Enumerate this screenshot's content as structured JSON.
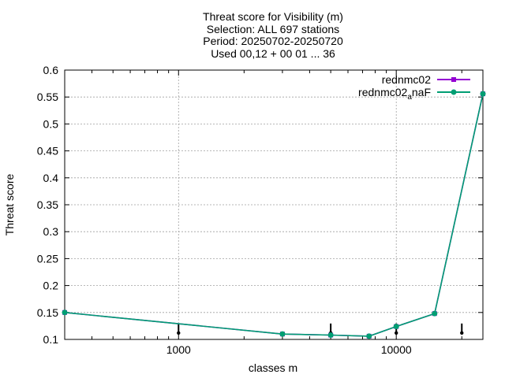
{
  "chart_data": {
    "type": "line",
    "title_lines": [
      "Threat score  for Visibility (m)",
      "Selection: ALL    697 stations",
      "Period: 20250702-20250720",
      "Used 00,12 + 00 01 ... 36"
    ],
    "xlabel": "classes m",
    "ylabel": "Threat score",
    "xscale": "log",
    "xlim": [
      300,
      25000
    ],
    "ylim": [
      0.1,
      0.6
    ],
    "x_ticks": [
      {
        "value": 1000,
        "label": "1000"
      },
      {
        "value": 10000,
        "label": "10000"
      }
    ],
    "y_ticks": [
      {
        "value": 0.1,
        "label": "0.1"
      },
      {
        "value": 0.15,
        "label": "0.15"
      },
      {
        "value": 0.2,
        "label": "0.2"
      },
      {
        "value": 0.25,
        "label": "0.25"
      },
      {
        "value": 0.3,
        "label": "0.3"
      },
      {
        "value": 0.35,
        "label": "0.35"
      },
      {
        "value": 0.4,
        "label": "0.4"
      },
      {
        "value": 0.45,
        "label": "0.45"
      },
      {
        "value": 0.5,
        "label": "0.5"
      },
      {
        "value": 0.55,
        "label": "0.55"
      },
      {
        "value": 0.6,
        "label": "0.6"
      }
    ],
    "grid": true,
    "legend_position": "top-right",
    "series": [
      {
        "name": "rednmc02",
        "color": "#9400d3",
        "marker": "square",
        "x": [
          300,
          3000,
          5000,
          7500,
          10000,
          15000,
          25000
        ],
        "y": [
          0.15,
          0.11,
          0.108,
          0.106,
          0.124,
          0.148,
          0.556
        ]
      },
      {
        "name_main": "rednmc02",
        "name_sub": "a",
        "name_tail": "naF",
        "color": "#009e73",
        "marker": "circle",
        "x": [
          300,
          3000,
          5000,
          7500,
          10000,
          15000,
          25000
        ],
        "y": [
          0.15,
          0.11,
          0.108,
          0.106,
          0.124,
          0.148,
          0.556
        ]
      }
    ],
    "error_markers": [
      {
        "x": 1000,
        "y": 0.112
      },
      {
        "x": 5000,
        "y": 0.112
      },
      {
        "x": 10000,
        "y": 0.112
      },
      {
        "x": 20000,
        "y": 0.112
      }
    ]
  }
}
